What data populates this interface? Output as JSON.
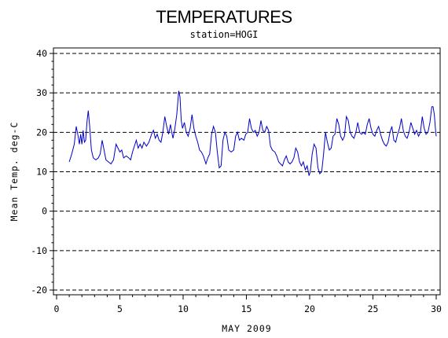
{
  "chart_data": {
    "type": "line",
    "title": "TEMPERATURES",
    "subtitle": "station=HOGI",
    "xlabel": "MAY 2009",
    "ylabel": "Mean Temp. deg-C",
    "xlim": [
      0,
      30
    ],
    "ylim": [
      -20,
      40
    ],
    "x_ticks": [
      0,
      5,
      10,
      15,
      20,
      25,
      30
    ],
    "y_ticks": [
      -20,
      -10,
      0,
      10,
      20,
      30,
      40
    ],
    "grid": "dashed horizontal at major y ticks",
    "series": [
      {
        "color": "#0000cc",
        "points": [
          [
            1.0,
            12.5
          ],
          [
            1.2,
            14.5
          ],
          [
            1.4,
            17.0
          ],
          [
            1.55,
            21.5
          ],
          [
            1.7,
            19.0
          ],
          [
            1.8,
            17.0
          ],
          [
            1.9,
            19.5
          ],
          [
            2.0,
            17.0
          ],
          [
            2.1,
            20.5
          ],
          [
            2.2,
            17.5
          ],
          [
            2.3,
            18.0
          ],
          [
            2.4,
            22.5
          ],
          [
            2.5,
            25.5
          ],
          [
            2.6,
            22.0
          ],
          [
            2.75,
            15.5
          ],
          [
            2.9,
            13.5
          ],
          [
            3.1,
            13.0
          ],
          [
            3.3,
            13.5
          ],
          [
            3.45,
            14.5
          ],
          [
            3.6,
            18.0
          ],
          [
            3.75,
            15.5
          ],
          [
            3.9,
            13.0
          ],
          [
            4.1,
            12.5
          ],
          [
            4.3,
            12.0
          ],
          [
            4.5,
            13.0
          ],
          [
            4.7,
            17.0
          ],
          [
            4.85,
            16.0
          ],
          [
            5.0,
            15.0
          ],
          [
            5.15,
            15.5
          ],
          [
            5.3,
            13.5
          ],
          [
            5.5,
            14.0
          ],
          [
            5.7,
            13.5
          ],
          [
            5.85,
            13.0
          ],
          [
            6.0,
            15.0
          ],
          [
            6.15,
            16.5
          ],
          [
            6.3,
            18.0
          ],
          [
            6.45,
            16.0
          ],
          [
            6.6,
            17.0
          ],
          [
            6.75,
            16.0
          ],
          [
            6.9,
            17.5
          ],
          [
            7.1,
            16.5
          ],
          [
            7.3,
            17.5
          ],
          [
            7.5,
            19.5
          ],
          [
            7.65,
            20.5
          ],
          [
            7.8,
            18.5
          ],
          [
            7.95,
            19.5
          ],
          [
            8.1,
            18.0
          ],
          [
            8.25,
            17.5
          ],
          [
            8.4,
            20.0
          ],
          [
            8.55,
            24.0
          ],
          [
            8.7,
            21.5
          ],
          [
            8.85,
            19.5
          ],
          [
            9.0,
            22.0
          ],
          [
            9.1,
            20.0
          ],
          [
            9.2,
            18.5
          ],
          [
            9.35,
            21.0
          ],
          [
            9.5,
            24.5
          ],
          [
            9.65,
            30.5
          ],
          [
            9.75,
            29.0
          ],
          [
            9.85,
            23.0
          ],
          [
            9.95,
            21.0
          ],
          [
            10.1,
            22.5
          ],
          [
            10.25,
            20.0
          ],
          [
            10.4,
            19.0
          ],
          [
            10.55,
            21.0
          ],
          [
            10.7,
            24.5
          ],
          [
            10.85,
            21.0
          ],
          [
            11.0,
            19.0
          ],
          [
            11.15,
            17.5
          ],
          [
            11.3,
            15.5
          ],
          [
            11.45,
            15.0
          ],
          [
            11.6,
            14.0
          ],
          [
            11.8,
            12.0
          ],
          [
            11.95,
            13.5
          ],
          [
            12.1,
            14.5
          ],
          [
            12.25,
            19.5
          ],
          [
            12.4,
            21.5
          ],
          [
            12.55,
            20.0
          ],
          [
            12.7,
            15.0
          ],
          [
            12.85,
            11.0
          ],
          [
            13.0,
            11.5
          ],
          [
            13.15,
            18.0
          ],
          [
            13.3,
            20.0
          ],
          [
            13.45,
            19.0
          ],
          [
            13.6,
            15.5
          ],
          [
            13.8,
            15.0
          ],
          [
            14.0,
            15.5
          ],
          [
            14.15,
            19.0
          ],
          [
            14.3,
            20.0
          ],
          [
            14.45,
            18.0
          ],
          [
            14.6,
            18.5
          ],
          [
            14.8,
            18.0
          ],
          [
            14.95,
            19.5
          ],
          [
            15.1,
            20.0
          ],
          [
            15.25,
            23.5
          ],
          [
            15.4,
            21.0
          ],
          [
            15.55,
            20.0
          ],
          [
            15.7,
            20.5
          ],
          [
            15.85,
            19.0
          ],
          [
            16.0,
            20.0
          ],
          [
            16.15,
            23.0
          ],
          [
            16.3,
            20.5
          ],
          [
            16.45,
            20.0
          ],
          [
            16.6,
            21.5
          ],
          [
            16.75,
            20.5
          ],
          [
            16.9,
            16.5
          ],
          [
            17.05,
            15.5
          ],
          [
            17.25,
            15.0
          ],
          [
            17.4,
            14.0
          ],
          [
            17.55,
            12.5
          ],
          [
            17.7,
            12.0
          ],
          [
            17.85,
            11.5
          ],
          [
            18.0,
            13.0
          ],
          [
            18.15,
            14.0
          ],
          [
            18.3,
            12.5
          ],
          [
            18.45,
            12.0
          ],
          [
            18.6,
            12.5
          ],
          [
            18.75,
            13.5
          ],
          [
            18.9,
            16.0
          ],
          [
            19.05,
            15.0
          ],
          [
            19.2,
            12.5
          ],
          [
            19.35,
            11.5
          ],
          [
            19.5,
            12.5
          ],
          [
            19.65,
            10.5
          ],
          [
            19.8,
            11.5
          ],
          [
            19.95,
            9.0
          ],
          [
            20.05,
            10.0
          ],
          [
            20.2,
            14.5
          ],
          [
            20.35,
            17.0
          ],
          [
            20.5,
            16.0
          ],
          [
            20.65,
            11.0
          ],
          [
            20.8,
            9.5
          ],
          [
            20.95,
            10.0
          ],
          [
            21.1,
            14.5
          ],
          [
            21.25,
            20.0
          ],
          [
            21.4,
            17.5
          ],
          [
            21.55,
            15.5
          ],
          [
            21.7,
            16.0
          ],
          [
            21.85,
            19.0
          ],
          [
            22.0,
            19.5
          ],
          [
            22.15,
            23.5
          ],
          [
            22.3,
            22.0
          ],
          [
            22.45,
            19.0
          ],
          [
            22.6,
            18.0
          ],
          [
            22.75,
            19.0
          ],
          [
            22.9,
            24.0
          ],
          [
            23.05,
            23.0
          ],
          [
            23.2,
            20.0
          ],
          [
            23.35,
            19.0
          ],
          [
            23.5,
            18.5
          ],
          [
            23.65,
            20.0
          ],
          [
            23.8,
            22.5
          ],
          [
            23.95,
            20.0
          ],
          [
            24.1,
            19.5
          ],
          [
            24.25,
            20.0
          ],
          [
            24.4,
            19.5
          ],
          [
            24.55,
            22.0
          ],
          [
            24.7,
            23.5
          ],
          [
            24.85,
            21.0
          ],
          [
            25.0,
            19.5
          ],
          [
            25.15,
            19.0
          ],
          [
            25.3,
            20.5
          ],
          [
            25.45,
            21.5
          ],
          [
            25.6,
            19.5
          ],
          [
            25.75,
            18.0
          ],
          [
            25.9,
            17.0
          ],
          [
            26.05,
            16.5
          ],
          [
            26.2,
            17.5
          ],
          [
            26.35,
            20.0
          ],
          [
            26.5,
            21.5
          ],
          [
            26.65,
            18.0
          ],
          [
            26.8,
            17.5
          ],
          [
            26.95,
            19.5
          ],
          [
            27.1,
            21.0
          ],
          [
            27.25,
            23.5
          ],
          [
            27.4,
            20.5
          ],
          [
            27.55,
            19.0
          ],
          [
            27.7,
            18.5
          ],
          [
            27.85,
            20.0
          ],
          [
            28.0,
            22.5
          ],
          [
            28.15,
            21.0
          ],
          [
            28.3,
            19.5
          ],
          [
            28.45,
            20.5
          ],
          [
            28.6,
            19.0
          ],
          [
            28.75,
            20.0
          ],
          [
            28.9,
            24.0
          ],
          [
            29.05,
            21.0
          ],
          [
            29.2,
            19.5
          ],
          [
            29.35,
            20.0
          ],
          [
            29.5,
            22.5
          ],
          [
            29.65,
            26.5
          ],
          [
            29.75,
            26.5
          ],
          [
            29.85,
            24.5
          ],
          [
            29.95,
            20.5
          ],
          [
            30.0,
            19.0
          ]
        ]
      }
    ]
  }
}
